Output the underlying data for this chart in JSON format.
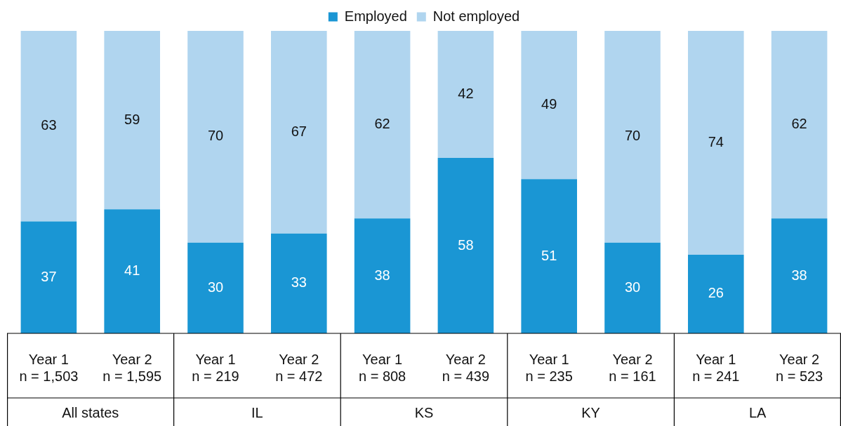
{
  "chart_data": {
    "type": "bar",
    "stacked": true,
    "categories": [
      "Year 1\nn = 1,503",
      "Year 2\nn = 1,595",
      "Year 1\nn = 219",
      "Year 2\nn = 472",
      "Year 1\nn = 808",
      "Year 2\nn = 439",
      "Year 1\nn = 235",
      "Year 2\nn = 161",
      "Year 1\nn = 241",
      "Year 2\nn = 523"
    ],
    "series": [
      {
        "name": "Employed",
        "color": "#1a96d4",
        "values": [
          37,
          41,
          30,
          33,
          38,
          58,
          51,
          30,
          26,
          38
        ]
      },
      {
        "name": "Not employed",
        "color": "#b0d5ef",
        "values": [
          63,
          59,
          70,
          67,
          62,
          42,
          49,
          70,
          74,
          62
        ]
      }
    ],
    "annotations": [
      "All states",
      "IL",
      "KS",
      "KY",
      "LA"
    ],
    "ylim": [
      0,
      100
    ],
    "data_labels": true,
    "legend": "top",
    "grid": false,
    "tick_labels": "x"
  }
}
